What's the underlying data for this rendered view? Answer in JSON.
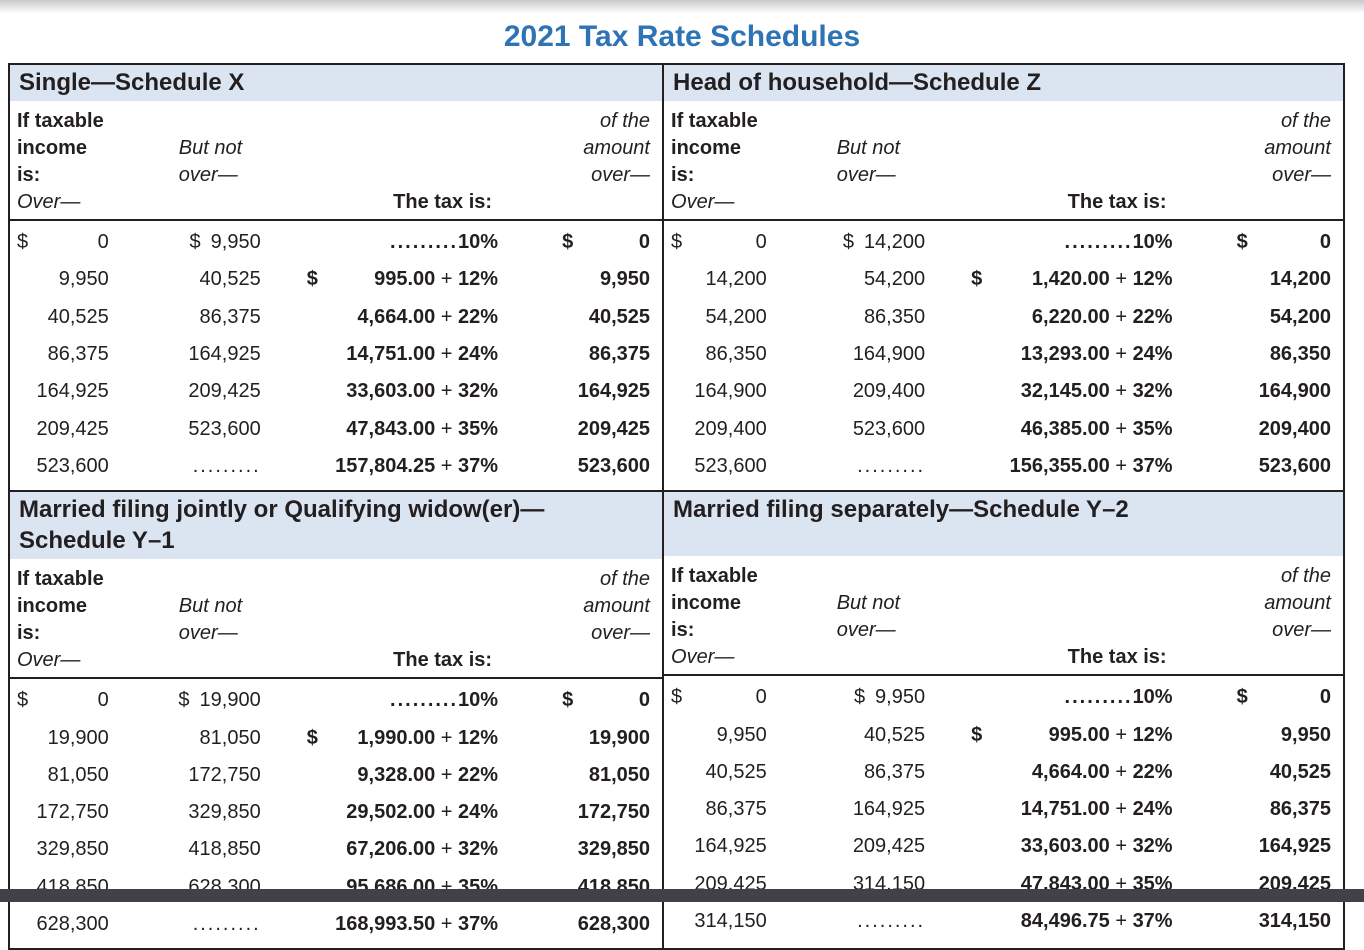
{
  "page_title": "2021 Tax Rate Schedules",
  "colors": {
    "title_blue": "#2E74B5",
    "band_blue": "#DBE5F1",
    "text_dark": "#231F20",
    "bottom_bar": "#414146"
  },
  "symbols": {
    "plus": "+",
    "dollar": "$"
  },
  "column_headers": {
    "col1_line1": "If taxable",
    "col1_line2": "income is:",
    "col1_line3": "Over—",
    "col2_line2": "But not",
    "col2_line3": "over—",
    "col3_line3": "The tax is:",
    "col4_line1": "of the",
    "col4_line2": "amount",
    "col4_line3": "over—"
  },
  "sections": [
    {
      "id": "single",
      "title_lines": [
        "Single—Schedule X"
      ],
      "rows": [
        {
          "over_sign": "$",
          "over": "0",
          "butnot_sign": "$",
          "butnot": "9,950",
          "tax_sign": "",
          "tax_lead": ".........",
          "tax_amount": "",
          "tax_rate": "10%",
          "amount_sign": "$",
          "amount": "0"
        },
        {
          "over_sign": "",
          "over": "9,950",
          "butnot_sign": "",
          "butnot": "40,525",
          "tax_sign": "$",
          "tax_lead": "",
          "tax_amount": "995.00",
          "tax_rate": "12%",
          "amount_sign": "",
          "amount": "9,950"
        },
        {
          "over_sign": "",
          "over": "40,525",
          "butnot_sign": "",
          "butnot": "86,375",
          "tax_sign": "",
          "tax_lead": "",
          "tax_amount": "4,664.00",
          "tax_rate": "22%",
          "amount_sign": "",
          "amount": "40,525"
        },
        {
          "over_sign": "",
          "over": "86,375",
          "butnot_sign": "",
          "butnot": "164,925",
          "tax_sign": "",
          "tax_lead": "",
          "tax_amount": "14,751.00",
          "tax_rate": "24%",
          "amount_sign": "",
          "amount": "86,375"
        },
        {
          "over_sign": "",
          "over": "164,925",
          "butnot_sign": "",
          "butnot": "209,425",
          "tax_sign": "",
          "tax_lead": "",
          "tax_amount": "33,603.00",
          "tax_rate": "32%",
          "amount_sign": "",
          "amount": "164,925"
        },
        {
          "over_sign": "",
          "over": "209,425",
          "butnot_sign": "",
          "butnot": "523,600",
          "tax_sign": "",
          "tax_lead": "",
          "tax_amount": "47,843.00",
          "tax_rate": "35%",
          "amount_sign": "",
          "amount": "209,425"
        },
        {
          "over_sign": "",
          "over": "523,600",
          "butnot_sign": "",
          "butnot": ".........",
          "tax_sign": "",
          "tax_lead": "",
          "tax_amount": "157,804.25",
          "tax_rate": "37%",
          "amount_sign": "",
          "amount": "523,600"
        }
      ]
    },
    {
      "id": "head-of-household",
      "title_lines": [
        "Head of household—Schedule Z"
      ],
      "rows": [
        {
          "over_sign": "$",
          "over": "0",
          "butnot_sign": "$",
          "butnot": "14,200",
          "tax_sign": "",
          "tax_lead": ".........",
          "tax_amount": "",
          "tax_rate": "10%",
          "amount_sign": "$",
          "amount": "0"
        },
        {
          "over_sign": "",
          "over": "14,200",
          "butnot_sign": "",
          "butnot": "54,200",
          "tax_sign": "$",
          "tax_lead": "",
          "tax_amount": "1,420.00",
          "tax_rate": "12%",
          "amount_sign": "",
          "amount": "14,200"
        },
        {
          "over_sign": "",
          "over": "54,200",
          "butnot_sign": "",
          "butnot": "86,350",
          "tax_sign": "",
          "tax_lead": "",
          "tax_amount": "6,220.00",
          "tax_rate": "22%",
          "amount_sign": "",
          "amount": "54,200"
        },
        {
          "over_sign": "",
          "over": "86,350",
          "butnot_sign": "",
          "butnot": "164,900",
          "tax_sign": "",
          "tax_lead": "",
          "tax_amount": "13,293.00",
          "tax_rate": "24%",
          "amount_sign": "",
          "amount": "86,350"
        },
        {
          "over_sign": "",
          "over": "164,900",
          "butnot_sign": "",
          "butnot": "209,400",
          "tax_sign": "",
          "tax_lead": "",
          "tax_amount": "32,145.00",
          "tax_rate": "32%",
          "amount_sign": "",
          "amount": "164,900"
        },
        {
          "over_sign": "",
          "over": "209,400",
          "butnot_sign": "",
          "butnot": "523,600",
          "tax_sign": "",
          "tax_lead": "",
          "tax_amount": "46,385.00",
          "tax_rate": "35%",
          "amount_sign": "",
          "amount": "209,400"
        },
        {
          "over_sign": "",
          "over": "523,600",
          "butnot_sign": "",
          "butnot": ".........",
          "tax_sign": "",
          "tax_lead": "",
          "tax_amount": "156,355.00",
          "tax_rate": "37%",
          "amount_sign": "",
          "amount": "523,600"
        }
      ]
    },
    {
      "id": "married-filing-jointly",
      "title_lines": [
        "Married filing jointly or Qualifying widow(er)—",
        "Schedule Y–1"
      ],
      "rows": [
        {
          "over_sign": "$",
          "over": "0",
          "butnot_sign": "$",
          "butnot": "19,900",
          "tax_sign": "",
          "tax_lead": ".........",
          "tax_amount": "",
          "tax_rate": "10%",
          "amount_sign": "$",
          "amount": "0"
        },
        {
          "over_sign": "",
          "over": "19,900",
          "butnot_sign": "",
          "butnot": "81,050",
          "tax_sign": "$",
          "tax_lead": "",
          "tax_amount": "1,990.00",
          "tax_rate": "12%",
          "amount_sign": "",
          "amount": "19,900"
        },
        {
          "over_sign": "",
          "over": "81,050",
          "butnot_sign": "",
          "butnot": "172,750",
          "tax_sign": "",
          "tax_lead": "",
          "tax_amount": "9,328.00",
          "tax_rate": "22%",
          "amount_sign": "",
          "amount": "81,050"
        },
        {
          "over_sign": "",
          "over": "172,750",
          "butnot_sign": "",
          "butnot": "329,850",
          "tax_sign": "",
          "tax_lead": "",
          "tax_amount": "29,502.00",
          "tax_rate": "24%",
          "amount_sign": "",
          "amount": "172,750"
        },
        {
          "over_sign": "",
          "over": "329,850",
          "butnot_sign": "",
          "butnot": "418,850",
          "tax_sign": "",
          "tax_lead": "",
          "tax_amount": "67,206.00",
          "tax_rate": "32%",
          "amount_sign": "",
          "amount": "329,850"
        },
        {
          "over_sign": "",
          "over": "418,850",
          "butnot_sign": "",
          "butnot": "628,300",
          "tax_sign": "",
          "tax_lead": "",
          "tax_amount": "95,686.00",
          "tax_rate": "35%",
          "amount_sign": "",
          "amount": "418,850"
        },
        {
          "over_sign": "",
          "over": "628,300",
          "butnot_sign": "",
          "butnot": ".........",
          "tax_sign": "",
          "tax_lead": "",
          "tax_amount": "168,993.50",
          "tax_rate": "37%",
          "amount_sign": "",
          "amount": "628,300"
        }
      ]
    },
    {
      "id": "married-filing-separately",
      "title_lines": [
        "Married filing separately—Schedule Y–2"
      ],
      "rows": [
        {
          "over_sign": "$",
          "over": "0",
          "butnot_sign": "$",
          "butnot": "9,950",
          "tax_sign": "",
          "tax_lead": ".........",
          "tax_amount": "",
          "tax_rate": "10%",
          "amount_sign": "$",
          "amount": "0"
        },
        {
          "over_sign": "",
          "over": "9,950",
          "butnot_sign": "",
          "butnot": "40,525",
          "tax_sign": "$",
          "tax_lead": "",
          "tax_amount": "995.00",
          "tax_rate": "12%",
          "amount_sign": "",
          "amount": "9,950"
        },
        {
          "over_sign": "",
          "over": "40,525",
          "butnot_sign": "",
          "butnot": "86,375",
          "tax_sign": "",
          "tax_lead": "",
          "tax_amount": "4,664.00",
          "tax_rate": "22%",
          "amount_sign": "",
          "amount": "40,525"
        },
        {
          "over_sign": "",
          "over": "86,375",
          "butnot_sign": "",
          "butnot": "164,925",
          "tax_sign": "",
          "tax_lead": "",
          "tax_amount": "14,751.00",
          "tax_rate": "24%",
          "amount_sign": "",
          "amount": "86,375"
        },
        {
          "over_sign": "",
          "over": "164,925",
          "butnot_sign": "",
          "butnot": "209,425",
          "tax_sign": "",
          "tax_lead": "",
          "tax_amount": "33,603.00",
          "tax_rate": "32%",
          "amount_sign": "",
          "amount": "164,925"
        },
        {
          "over_sign": "",
          "over": "209,425",
          "butnot_sign": "",
          "butnot": "314,150",
          "tax_sign": "",
          "tax_lead": "",
          "tax_amount": "47,843.00",
          "tax_rate": "35%",
          "amount_sign": "",
          "amount": "209,425"
        },
        {
          "over_sign": "",
          "over": "314,150",
          "butnot_sign": "",
          "butnot": ".........",
          "tax_sign": "",
          "tax_lead": "",
          "tax_amount": "84,496.75",
          "tax_rate": "37%",
          "amount_sign": "",
          "amount": "314,150"
        }
      ]
    }
  ]
}
